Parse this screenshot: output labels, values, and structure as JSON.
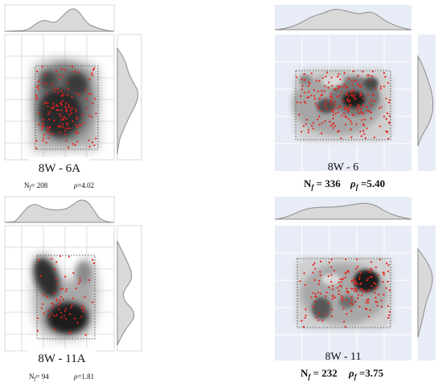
{
  "panels": [
    {
      "label": "8W - 6A",
      "n_label": "N",
      "n_sub": "f",
      "n_value": "= 208",
      "rho_label": "ρ",
      "rho_value": "=4.02",
      "style": "white"
    },
    {
      "label": "8W - 6",
      "n_label": "N",
      "n_sub": "f",
      "n_value": " = 336",
      "rho_label": "ρ",
      "rho_sub": "f",
      "rho_value": " =5.40",
      "style": "blue"
    },
    {
      "label": "8W - 11A",
      "n_label": "N",
      "n_sub": "f",
      "n_value": "= 94",
      "rho_label": "ρ",
      "rho_value": "=1.81",
      "style": "white"
    },
    {
      "label": "8W - 11",
      "n_label": "N",
      "n_sub": "f",
      "n_value": " = 232",
      "rho_label": "ρ",
      "rho_sub": "f",
      "rho_value": " =3.75",
      "style": "blue"
    }
  ],
  "colors": {
    "points": "#e8231b",
    "marginal_fill": "#d9d9d9",
    "marginal_line": "#8c8c8c",
    "blue_bg": "#e8ecf6",
    "grid": "#c8c8c8"
  }
}
